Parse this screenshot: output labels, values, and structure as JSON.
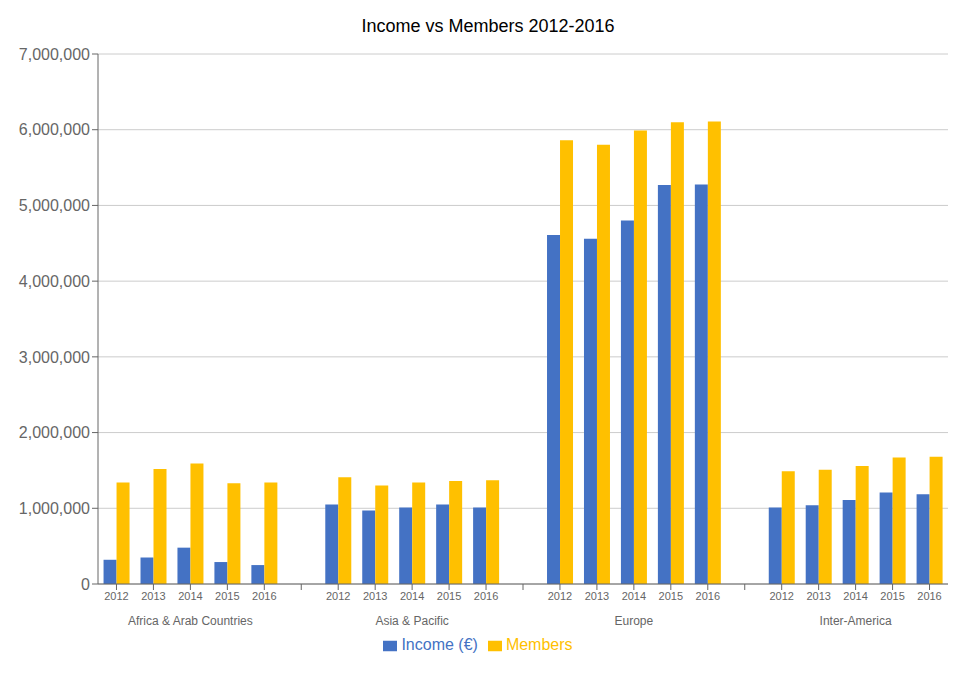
{
  "chart_data": {
    "type": "bar",
    "title": "Income vs Members 2012-2016",
    "groups": [
      {
        "name": "Africa & Arab Countries",
        "categories": [
          "2012",
          "2013",
          "2014",
          "2015",
          "2016"
        ]
      },
      {
        "name": "Asia & Pacific",
        "categories": [
          "2012",
          "2013",
          "2014",
          "2015",
          "2016"
        ]
      },
      {
        "name": "Europe",
        "categories": [
          "2012",
          "2013",
          "2014",
          "2015",
          "2016"
        ]
      },
      {
        "name": "Inter-America",
        "categories": [
          "2012",
          "2013",
          "2014",
          "2015",
          "2016"
        ]
      }
    ],
    "series": [
      {
        "name": "Income (€)",
        "color": "#4472C4",
        "values": [
          320000,
          350000,
          480000,
          290000,
          250000,
          1050000,
          970000,
          1010000,
          1050000,
          1010000,
          4610000,
          4560000,
          4800000,
          5270000,
          5275000,
          1010000,
          1040000,
          1110000,
          1210000,
          1185000
        ]
      },
      {
        "name": "Members",
        "color": "#FFC000",
        "values": [
          1340000,
          1520000,
          1590000,
          1330000,
          1340000,
          1410000,
          1300000,
          1340000,
          1360000,
          1370000,
          5860000,
          5800000,
          5990000,
          6100000,
          6110000,
          1490000,
          1510000,
          1560000,
          1670000,
          1680000
        ]
      }
    ],
    "ylim": [
      0,
      7000000
    ],
    "yticks": [
      0,
      {
        "value": 1000000,
        "label": "1,000,000"
      },
      {
        "value": 2000000,
        "label": "2,000,000"
      },
      {
        "value": 3000000,
        "label": "3,000,000"
      },
      {
        "value": 4000000,
        "label": "4,000,000"
      },
      {
        "value": 5000000,
        "label": "5,000,000"
      },
      {
        "value": 6000000,
        "label": "6,000,000"
      },
      {
        "value": 7000000,
        "label": "7,000,000"
      }
    ],
    "grid": true
  }
}
